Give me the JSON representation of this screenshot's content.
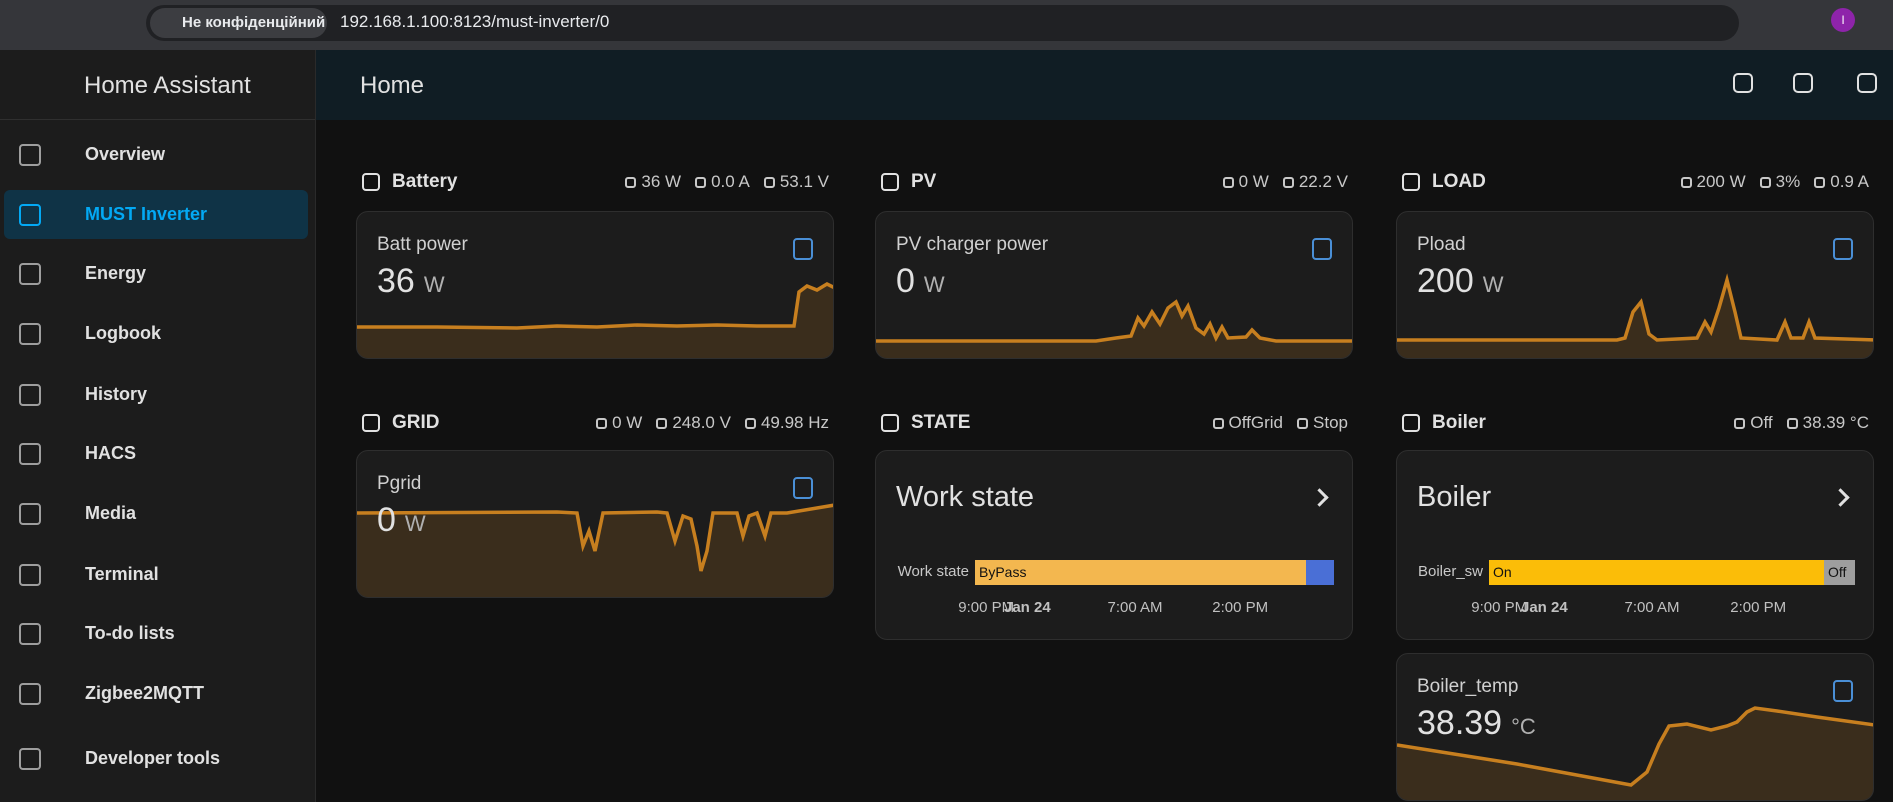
{
  "browser": {
    "security": "Не конфіденційний",
    "url": "192.168.1.100:8123/must-inverter/0",
    "avatar": "I"
  },
  "sidebar": {
    "title": "Home Assistant",
    "items": [
      "Overview",
      "MUST Inverter",
      "Energy",
      "Logbook",
      "History",
      "HACS",
      "Media",
      "Terminal",
      "To-do lists",
      "Zigbee2MQTT",
      "Developer tools"
    ]
  },
  "header": {
    "title": "Home"
  },
  "sections": [
    {
      "title": "Battery",
      "badges": [
        "36 W",
        "0.0 A",
        "53.1 V"
      ],
      "cards": [
        {
          "name": "Batt power",
          "value": 36,
          "unit": "W"
        }
      ]
    },
    {
      "title": "PV",
      "badges": [
        "0 W",
        "22.2 V"
      ],
      "cards": [
        {
          "name": "PV charger power",
          "value": 0,
          "unit": "W"
        }
      ]
    },
    {
      "title": "LOAD",
      "badges": [
        "200 W",
        "3%",
        "0.9 A"
      ],
      "cards": [
        {
          "name": "Pload",
          "value": 200,
          "unit": "W"
        }
      ]
    },
    {
      "title": "GRID",
      "badges": [
        "0 W",
        "248.0 V",
        "49.98 Hz"
      ],
      "cards": [
        {
          "name": "Pgrid",
          "value": 0,
          "unit": "W"
        }
      ]
    },
    {
      "title": "STATE",
      "badges": [
        "OffGrid",
        "Stop"
      ],
      "history": {
        "title": "Work state",
        "entity": "Work state",
        "segments": [
          "ByPass"
        ],
        "axis": [
          "9:00 PM",
          "Jan 24",
          "7:00 AM",
          "2:00 PM"
        ]
      }
    },
    {
      "title": "Boiler",
      "badges": [
        "Off",
        "38.39 °C"
      ],
      "history": {
        "title": "Boiler",
        "entity": "Boiler_sw",
        "segments": [
          "On",
          "Off"
        ],
        "axis": [
          "9:00 PM",
          "Jan 24",
          "7:00 AM",
          "2:00 PM"
        ]
      },
      "cards": [
        {
          "name": "Boiler_temp",
          "value": 38.39,
          "unit": "°C"
        }
      ]
    }
  ]
}
